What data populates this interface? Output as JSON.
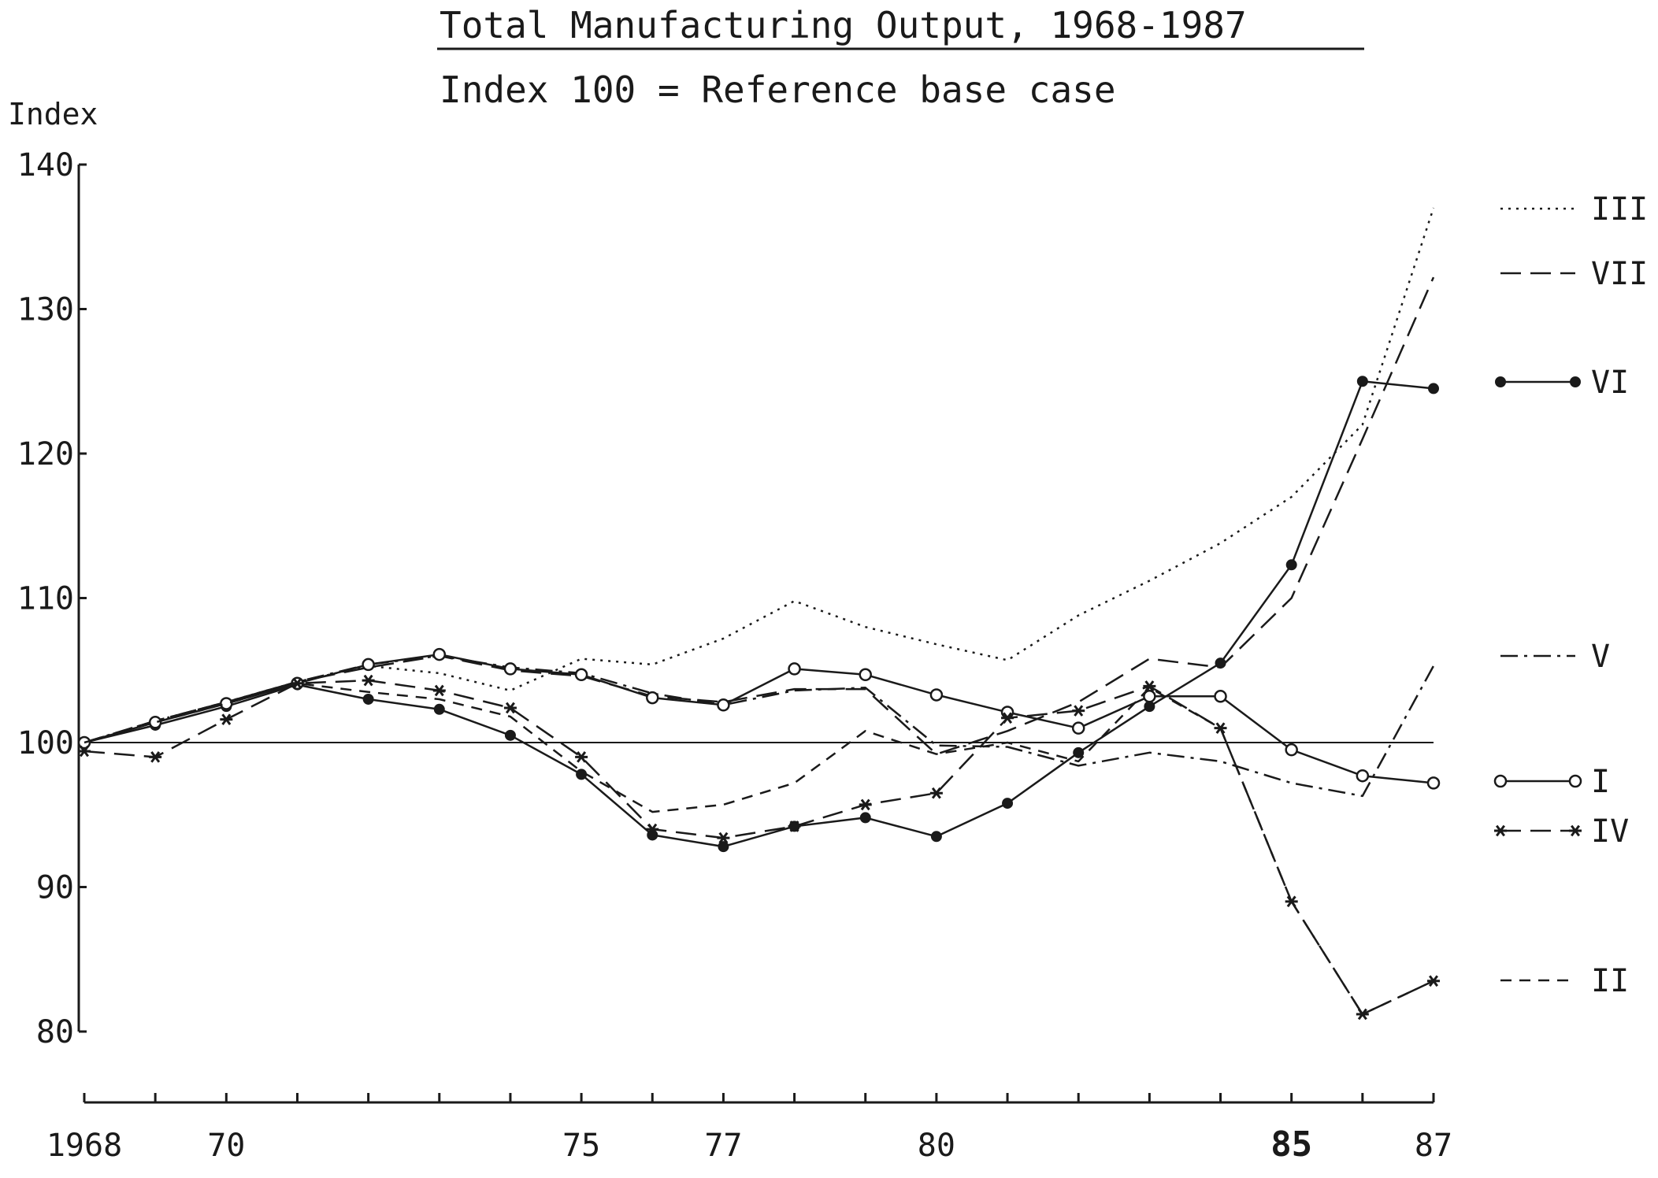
{
  "chart_data": {
    "type": "line",
    "title": "Total Manufacturing Output, 1968-1987",
    "subtitle": "Index 100 = Reference base case",
    "ylabel": "Index",
    "xlabel": "",
    "xlim": [
      1968,
      1987
    ],
    "ylim": [
      80,
      140
    ],
    "yticks": [
      80,
      90,
      100,
      110,
      120,
      130,
      140
    ],
    "xticks": [
      {
        "value": 1968,
        "label": "1968"
      },
      {
        "value": 1970,
        "label": "70"
      },
      {
        "value": 1975,
        "label": "75"
      },
      {
        "value": 1977,
        "label": "77"
      },
      {
        "value": 1980,
        "label": "80"
      },
      {
        "value": 1985,
        "label": "85",
        "bold": true
      },
      {
        "value": 1987,
        "label": "87"
      }
    ],
    "x_minor_ticks": [
      1968,
      1969,
      1970,
      1971,
      1972,
      1973,
      1974,
      1975,
      1976,
      1977,
      1978,
      1979,
      1980,
      1981,
      1982,
      1983,
      1984,
      1985,
      1986,
      1987
    ],
    "reference_line": 100,
    "legend_position": "right",
    "series": [
      {
        "name": "III",
        "style": "dotted",
        "marker": "none",
        "x": [
          1968,
          1969,
          1970,
          1971,
          1972,
          1973,
          1974,
          1975,
          1976,
          1977,
          1978,
          1979,
          1980,
          1981,
          1982,
          1983,
          1984,
          1985,
          1986,
          1987
        ],
        "y": [
          100,
          101.5,
          102.8,
          104.2,
          105.3,
          104.8,
          103.6,
          105.8,
          105.4,
          107.2,
          109.8,
          108.0,
          106.8,
          105.7,
          108.8,
          111.2,
          113.8,
          117.0,
          122.0,
          137.0
        ]
      },
      {
        "name": "VII",
        "style": "long-dash",
        "marker": "none",
        "x": [
          1968,
          1969,
          1970,
          1971,
          1972,
          1973,
          1974,
          1975,
          1976,
          1977,
          1978,
          1979,
          1980,
          1981,
          1982,
          1983,
          1984,
          1985,
          1986,
          1987
        ],
        "y": [
          100,
          101.5,
          102.8,
          104.2,
          105.2,
          106.0,
          105.0,
          104.6,
          103.2,
          102.8,
          103.7,
          103.7,
          99.2,
          100.8,
          102.8,
          105.8,
          105.2,
          110.0,
          121.0,
          132.2
        ]
      },
      {
        "name": "VI",
        "style": "solid",
        "marker": "filled-circle",
        "x": [
          1968,
          1969,
          1970,
          1971,
          1972,
          1973,
          1974,
          1975,
          1976,
          1977,
          1978,
          1979,
          1980,
          1981,
          1982,
          1983,
          1984,
          1985,
          1986,
          1987
        ],
        "y": [
          100,
          101.2,
          102.5,
          104.0,
          103.0,
          102.3,
          100.5,
          97.8,
          93.6,
          92.8,
          94.2,
          94.8,
          93.5,
          95.8,
          99.3,
          102.5,
          105.5,
          112.3,
          125.0,
          124.5
        ]
      },
      {
        "name": "V",
        "style": "dash-dot",
        "marker": "none",
        "x": [
          1968,
          1969,
          1970,
          1971,
          1972,
          1973,
          1974,
          1975,
          1976,
          1977,
          1978,
          1979,
          1980,
          1981,
          1982,
          1983,
          1984,
          1985,
          1986,
          1987
        ],
        "y": [
          100,
          101.5,
          102.8,
          104.2,
          105.4,
          106.0,
          105.2,
          104.8,
          103.4,
          102.6,
          103.6,
          103.8,
          99.8,
          99.7,
          98.4,
          99.3,
          98.7,
          97.2,
          96.3,
          105.3
        ]
      },
      {
        "name": "I",
        "style": "solid",
        "marker": "open-circle",
        "x": [
          1968,
          1969,
          1970,
          1971,
          1972,
          1973,
          1974,
          1975,
          1976,
          1977,
          1978,
          1979,
          1980,
          1981,
          1982,
          1983,
          1984,
          1985,
          1986,
          1987
        ],
        "y": [
          100,
          101.4,
          102.7,
          104.1,
          105.4,
          106.1,
          105.1,
          104.7,
          103.1,
          102.6,
          105.1,
          104.7,
          103.3,
          102.1,
          101.0,
          103.2,
          103.2,
          99.5,
          97.7,
          97.2
        ]
      },
      {
        "name": "IV",
        "style": "long-dash",
        "marker": "star",
        "x": [
          1968,
          1969,
          1970,
          1971,
          1972,
          1973,
          1974,
          1975,
          1976,
          1977,
          1978,
          1979,
          1980,
          1981,
          1982,
          1983,
          1984,
          1985,
          1986,
          1987
        ],
        "y": [
          99.4,
          99.0,
          101.6,
          104.1,
          104.3,
          103.6,
          102.4,
          99.0,
          94.0,
          93.4,
          94.2,
          95.7,
          96.5,
          101.7,
          102.2,
          103.9,
          101.0,
          89.0,
          81.2,
          83.5
        ]
      },
      {
        "name": "II",
        "style": "short-dash",
        "marker": "none",
        "x": [
          1968,
          1969,
          1970,
          1971,
          1972,
          1973,
          1974,
          1975,
          1976,
          1977,
          1978,
          1979,
          1980,
          1981,
          1982,
          1983,
          1984,
          1985,
          1986,
          1987
        ],
        "y": [
          100,
          101.4,
          102.7,
          104.1,
          103.5,
          103.0,
          101.8,
          98.0,
          95.2,
          95.7,
          97.2,
          100.8,
          99.2,
          100.0,
          98.7,
          103.8,
          101.0,
          89.0,
          81.2,
          83.5
        ]
      }
    ],
    "legend": [
      {
        "series": "III"
      },
      {
        "series": "VII"
      },
      {
        "series": "VI"
      },
      {
        "series": "V"
      },
      {
        "series": "I"
      },
      {
        "series": "IV"
      },
      {
        "series": "II"
      }
    ]
  }
}
